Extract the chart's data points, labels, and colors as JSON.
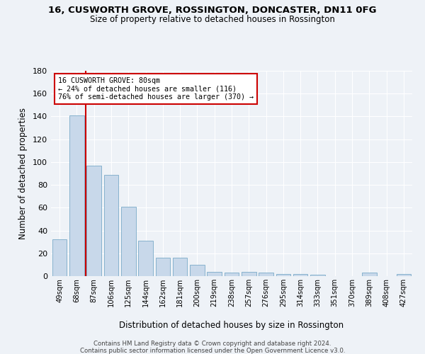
{
  "title": "16, CUSWORTH GROVE, ROSSINGTON, DONCASTER, DN11 0FG",
  "subtitle": "Size of property relative to detached houses in Rossington",
  "xlabel": "Distribution of detached houses by size in Rossington",
  "ylabel": "Number of detached properties",
  "bar_color": "#c8d8ea",
  "bar_edge_color": "#7aaac8",
  "categories": [
    "49sqm",
    "68sqm",
    "87sqm",
    "106sqm",
    "125sqm",
    "144sqm",
    "162sqm",
    "181sqm",
    "200sqm",
    "219sqm",
    "238sqm",
    "257sqm",
    "276sqm",
    "295sqm",
    "314sqm",
    "333sqm",
    "351sqm",
    "370sqm",
    "389sqm",
    "408sqm",
    "427sqm"
  ],
  "values": [
    32,
    141,
    97,
    89,
    61,
    31,
    16,
    16,
    10,
    4,
    3,
    4,
    3,
    2,
    2,
    1,
    0,
    0,
    3,
    0,
    2
  ],
  "ylim": [
    0,
    180
  ],
  "yticks": [
    0,
    20,
    40,
    60,
    80,
    100,
    120,
    140,
    160,
    180
  ],
  "vline_color": "#cc0000",
  "annotation_text": "16 CUSWORTH GROVE: 80sqm\n← 24% of detached houses are smaller (116)\n76% of semi-detached houses are larger (370) →",
  "annotation_box_color": "#ffffff",
  "annotation_box_edge_color": "#cc0000",
  "footer_line1": "Contains HM Land Registry data © Crown copyright and database right 2024.",
  "footer_line2": "Contains public sector information licensed under the Open Government Licence v3.0.",
  "background_color": "#eef2f7",
  "grid_color": "#ffffff"
}
